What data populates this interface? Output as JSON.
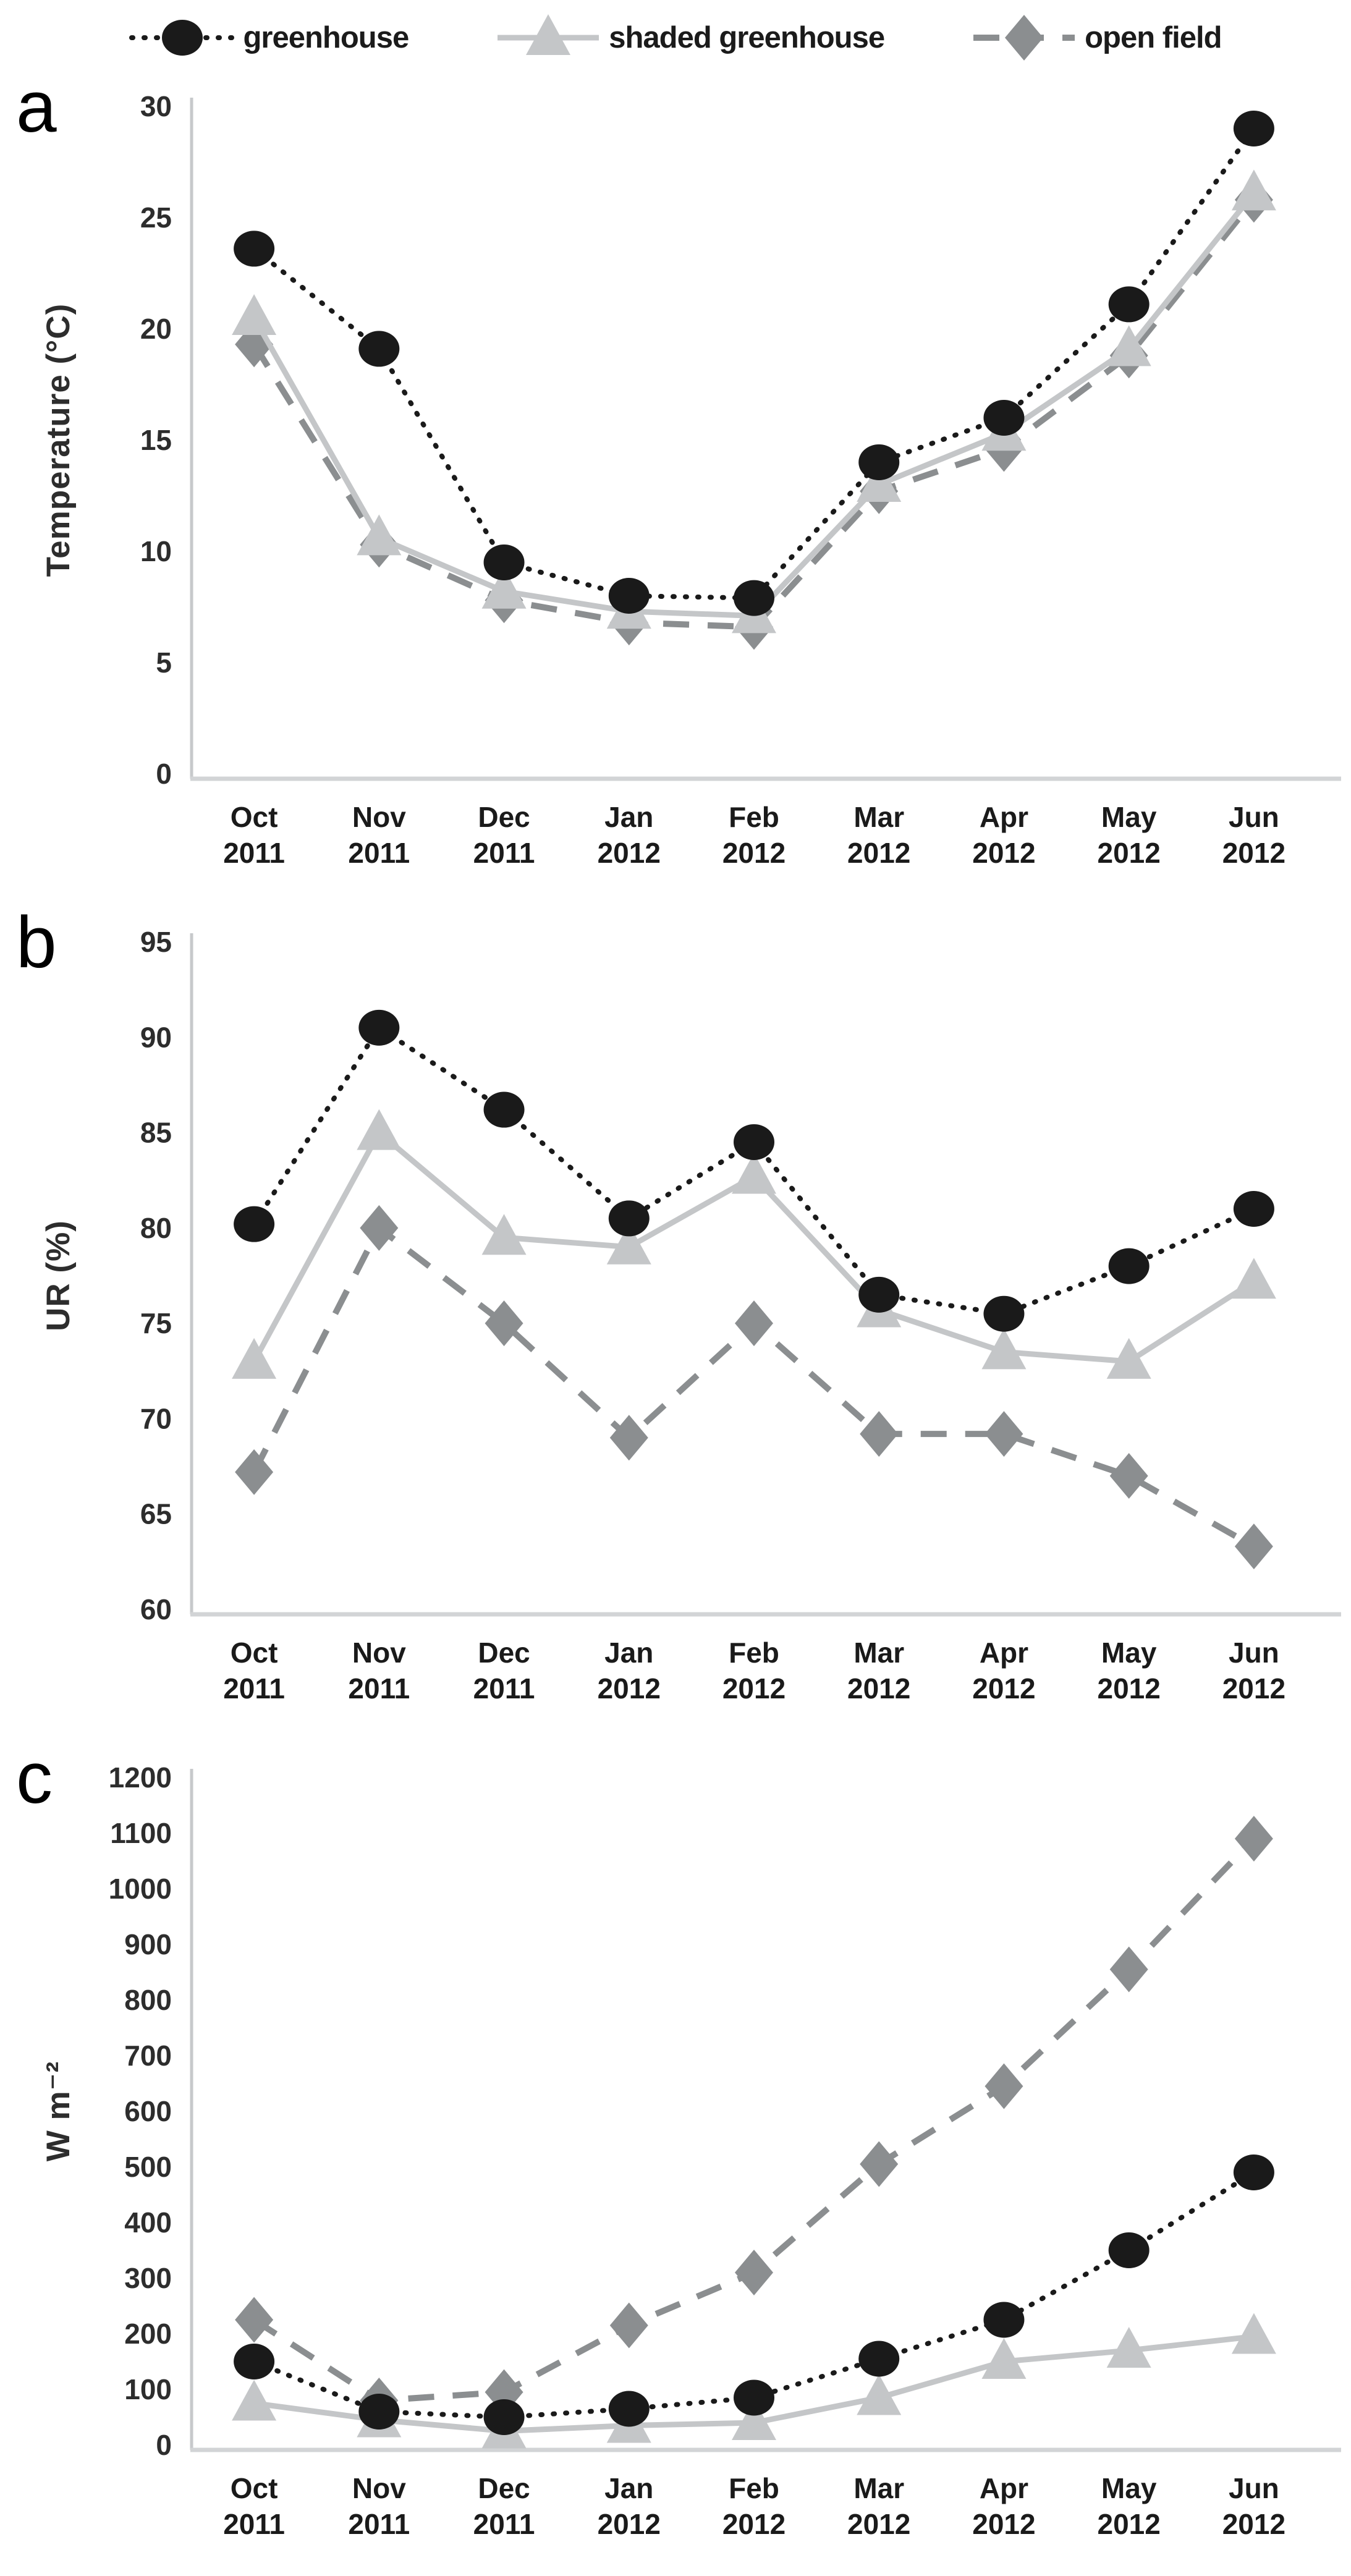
{
  "legend": {
    "items": [
      {
        "label": "greenhouse",
        "marker": "circle",
        "line": "dotted",
        "color": "#1a1a1a"
      },
      {
        "label": "shaded greenhouse",
        "marker": "triangle",
        "line": "solid",
        "color": "#c4c6c8"
      },
      {
        "label": "open field",
        "marker": "diamond",
        "line": "dashed",
        "color": "#8b8e90"
      }
    ]
  },
  "chart_data": [
    {
      "type": "line",
      "panel_letter": "a",
      "ylabel": "Temperature (°C)",
      "xlabel": "",
      "ylim": [
        0,
        30
      ],
      "yticks": [
        0,
        5,
        10,
        15,
        20,
        25,
        30
      ],
      "grid": false,
      "legend_position": "top",
      "categories": [
        "Oct 2011",
        "Nov 2011",
        "Dec 2011",
        "Jan 2012",
        "Feb 2012",
        "Mar 2012",
        "Apr 2012",
        "May 2012",
        "Jun 2012"
      ],
      "series": [
        {
          "name": "greenhouse",
          "values": [
            23.6,
            19.1,
            9.5,
            8.0,
            7.9,
            14.0,
            16.0,
            21.1,
            29.0
          ]
        },
        {
          "name": "shaded greenhouse",
          "values": [
            20.5,
            10.6,
            8.2,
            7.3,
            7.1,
            13.0,
            15.3,
            19.1,
            26.1
          ]
        },
        {
          "name": "open field",
          "values": [
            19.3,
            10.3,
            7.8,
            6.8,
            6.6,
            12.7,
            14.6,
            18.8,
            25.8
          ]
        }
      ]
    },
    {
      "type": "line",
      "panel_letter": "b",
      "ylabel": "UR (%)",
      "xlabel": "",
      "ylim": [
        60,
        95
      ],
      "yticks": [
        60,
        65,
        70,
        75,
        80,
        85,
        90,
        95
      ],
      "grid": false,
      "legend_position": "top",
      "categories": [
        "Oct 2011",
        "Nov 2011",
        "Dec 2011",
        "Jan 2012",
        "Feb 2012",
        "Mar 2012",
        "Apr 2012",
        "May 2012",
        "Jun 2012"
      ],
      "series": [
        {
          "name": "greenhouse",
          "values": [
            80.2,
            90.5,
            86.2,
            80.5,
            84.5,
            76.5,
            75.5,
            78.0,
            81.0
          ]
        },
        {
          "name": "shaded greenhouse",
          "values": [
            73.0,
            85.0,
            79.5,
            79.0,
            82.7,
            75.7,
            73.5,
            73.0,
            77.2
          ]
        },
        {
          "name": "open field",
          "values": [
            67.2,
            80.0,
            75.0,
            69.0,
            75.0,
            69.2,
            69.2,
            67.0,
            63.3
          ]
        }
      ]
    },
    {
      "type": "line",
      "panel_letter": "c",
      "ylabel": "W m⁻²",
      "xlabel": "",
      "ylim": [
        0,
        1200
      ],
      "yticks": [
        0,
        100,
        200,
        300,
        400,
        500,
        600,
        700,
        800,
        900,
        1000,
        1100,
        1200
      ],
      "grid": false,
      "legend_position": "top",
      "categories": [
        "Oct 2011",
        "Nov 2011",
        "Dec 2011",
        "Jan 2012",
        "Feb 2012",
        "Mar 2012",
        "Apr 2012",
        "May 2012",
        "Jun 2012"
      ],
      "series": [
        {
          "name": "greenhouse",
          "values": [
            150,
            60,
            50,
            65,
            85,
            155,
            225,
            350,
            490
          ]
        },
        {
          "name": "shaded greenhouse",
          "values": [
            75,
            45,
            25,
            35,
            40,
            85,
            150,
            170,
            195
          ]
        },
        {
          "name": "open field",
          "values": [
            225,
            80,
            95,
            215,
            310,
            505,
            645,
            855,
            1090
          ]
        }
      ]
    }
  ]
}
